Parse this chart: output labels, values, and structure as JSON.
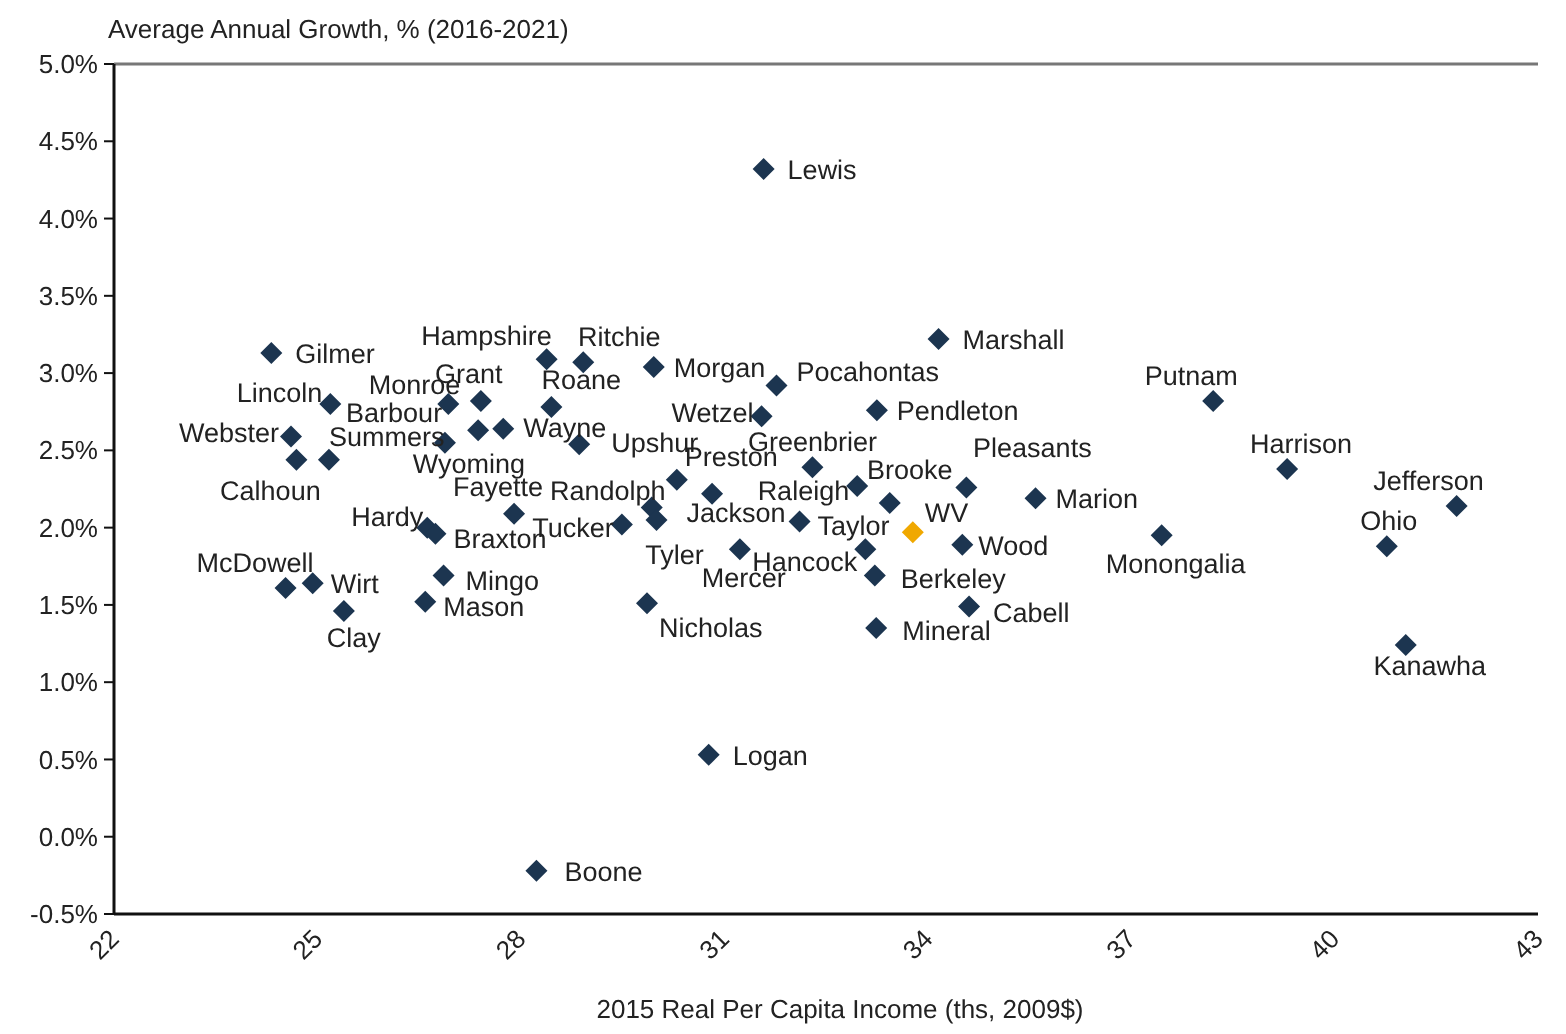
{
  "chart_data": {
    "type": "scatter",
    "ylabel": "Average Annual Growth, % (2016-2021)",
    "xlabel": "2015 Real Per Capita Income (ths, 2009$)",
    "xlim": [
      22,
      43
    ],
    "xticks": [
      22,
      25,
      28,
      31,
      34,
      37,
      40,
      43
    ],
    "ylim": [
      -0.5,
      5.0
    ],
    "yticks": [
      {
        "value": -0.5,
        "label": "-0.5%"
      },
      {
        "value": 0,
        "label": "0.0%"
      },
      {
        "value": 0.5,
        "label": "0.5%"
      },
      {
        "value": 1.0,
        "label": "1.0%"
      },
      {
        "value": 1.5,
        "label": "1.5%"
      },
      {
        "value": 2.0,
        "label": "2.0%"
      },
      {
        "value": 2.5,
        "label": "2.5%"
      },
      {
        "value": 3.0,
        "label": "3.0%"
      },
      {
        "value": 3.5,
        "label": "3.5%"
      },
      {
        "value": 4.0,
        "label": "4.0%"
      },
      {
        "value": 4.5,
        "label": "4.5%"
      },
      {
        "value": 5.0,
        "label": "5.0%"
      }
    ],
    "grid": false,
    "marker": "diamond",
    "series": [
      {
        "x": [
          24.32,
          25.19,
          24.61,
          24.69,
          25.17,
          26.93,
          27.41,
          27.37,
          27.74,
          26.88,
          28.38,
          28.92,
          28.45,
          28.86,
          27.9,
          26.62,
          26.74,
          24.53,
          24.93,
          25.39,
          26.86,
          26.59,
          29.96,
          31.77,
          34.16,
          31.55,
          33.25,
          32.3,
          30.3,
          29.93,
          30.0,
          29.49,
          30.82,
          32.96,
          33.44,
          32.11,
          31.23,
          33.08,
          33.22,
          33.24,
          29.86,
          33.78,
          34.51,
          34.61,
          34.57,
          35.59,
          38.21,
          39.3,
          37.45,
          41.8,
          40.77,
          41.05,
          31.58,
          30.77,
          28.23
        ],
        "values": [
          3.13,
          2.8,
          2.59,
          2.44,
          2.44,
          2.8,
          2.82,
          2.63,
          2.64,
          2.55,
          3.09,
          3.07,
          2.78,
          2.54,
          2.09,
          2.0,
          1.96,
          1.61,
          1.64,
          1.46,
          1.69,
          1.52,
          3.04,
          2.92,
          3.22,
          2.72,
          2.76,
          2.39,
          2.31,
          2.13,
          2.05,
          2.02,
          2.22,
          2.27,
          2.16,
          2.04,
          1.86,
          1.86,
          1.69,
          1.35,
          1.51,
          1.97,
          1.89,
          1.49,
          2.26,
          2.19,
          2.82,
          2.38,
          1.95,
          2.14,
          1.88,
          1.24,
          4.32,
          0.53,
          -0.22
        ],
        "colors": [
          "#1c3550",
          "#1c3550",
          "#1c3550",
          "#1c3550",
          "#1c3550",
          "#1c3550",
          "#1c3550",
          "#1c3550",
          "#1c3550",
          "#1c3550",
          "#1c3550",
          "#1c3550",
          "#1c3550",
          "#1c3550",
          "#1c3550",
          "#1c3550",
          "#1c3550",
          "#1c3550",
          "#1c3550",
          "#1c3550",
          "#1c3550",
          "#1c3550",
          "#1c3550",
          "#1c3550",
          "#1c3550",
          "#1c3550",
          "#1c3550",
          "#1c3550",
          "#1c3550",
          "#1c3550",
          "#1c3550",
          "#1c3550",
          "#1c3550",
          "#1c3550",
          "#1c3550",
          "#1c3550",
          "#1c3550",
          "#1c3550",
          "#1c3550",
          "#1c3550",
          "#1c3550",
          "#f0a800",
          "#1c3550",
          "#1c3550",
          "#1c3550",
          "#1c3550",
          "#1c3550",
          "#1c3550",
          "#1c3550",
          "#1c3550",
          "#1c3550",
          "#1c3550",
          "#1c3550",
          "#1c3550",
          "#1c3550"
        ],
        "value_labels": [
          "Gilmer",
          "Lincoln",
          "Webster",
          "Calhoun",
          "Summers",
          "Monroe",
          "Grant",
          "Barbour",
          "Wayne",
          "Wyoming",
          "Hampshire",
          "Ritchie",
          "Roane",
          "Upshur",
          "Fayette",
          "Hardy",
          "Braxton",
          "McDowell",
          "Wirt",
          "Clay",
          "Mingo",
          "Mason",
          "Morgan",
          "Pocahontas",
          "Marshall",
          "Wetzel",
          "Pendleton",
          "Greenbrier",
          "Preston",
          "Randolph",
          "Tyler",
          "Tucker",
          "Jackson",
          "Raleigh",
          "Brooke",
          "Taylor",
          "Mercer",
          "Hancock",
          "Berkeley",
          "Mineral",
          "Nicholas",
          "WV",
          "Wood",
          "Cabell",
          "Pleasants",
          "Marion",
          "Putnam",
          "Harrison",
          "Monongalia",
          "Jefferson",
          "Ohio",
          "Kanawha",
          "Lewis",
          "Logan",
          "Boone"
        ]
      }
    ]
  }
}
